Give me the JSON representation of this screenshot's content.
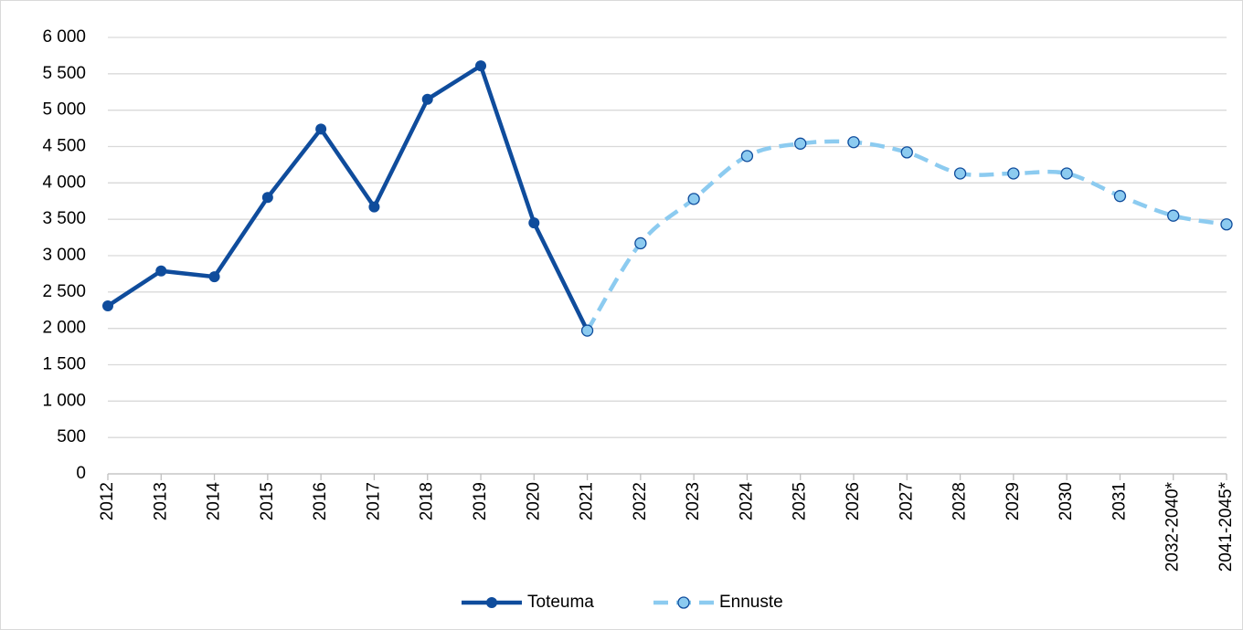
{
  "chart_data": {
    "type": "line",
    "categories": [
      "2012",
      "2013",
      "2014",
      "2015",
      "2016",
      "2017",
      "2018",
      "2019",
      "2020",
      "2021",
      "2022",
      "2023",
      "2024",
      "2025",
      "2026",
      "2027",
      "2028",
      "2029",
      "2030",
      "2031",
      "2032-2040*",
      "2041-2045*"
    ],
    "series": [
      {
        "name": "Toteuma",
        "color": "#0f4c9c",
        "style": "solid",
        "values": [
          2310,
          2790,
          2710,
          3800,
          4740,
          3670,
          5150,
          5610,
          3450,
          1970,
          null,
          null,
          null,
          null,
          null,
          null,
          null,
          null,
          null,
          null,
          null,
          null
        ]
      },
      {
        "name": "Ennuste",
        "color": "#8ccbf0",
        "style": "dashed",
        "smooth": true,
        "values": [
          null,
          null,
          null,
          null,
          null,
          null,
          null,
          null,
          null,
          1970,
          3170,
          3780,
          4370,
          4540,
          4560,
          4420,
          4130,
          4130,
          4130,
          3820,
          3550,
          3430
        ]
      }
    ],
    "ylim": [
      0,
      6000
    ],
    "yticks": [
      0,
      500,
      {
        "value": 1000,
        "label": "1 000"
      },
      {
        "value": 1500,
        "label": "1 500"
      },
      {
        "value": 2000,
        "label": "2 000"
      },
      {
        "value": 2500,
        "label": "2 500"
      },
      {
        "value": 3000,
        "label": "3 000"
      },
      {
        "value": 3500,
        "label": "3 500"
      },
      {
        "value": 4000,
        "label": "4 000"
      },
      {
        "value": 4500,
        "label": "4 500"
      },
      {
        "value": 5000,
        "label": "5 000"
      },
      {
        "value": 5500,
        "label": "5 500"
      },
      {
        "value": 6000,
        "label": "6 000"
      }
    ],
    "grid": true,
    "legend": "bottom"
  }
}
